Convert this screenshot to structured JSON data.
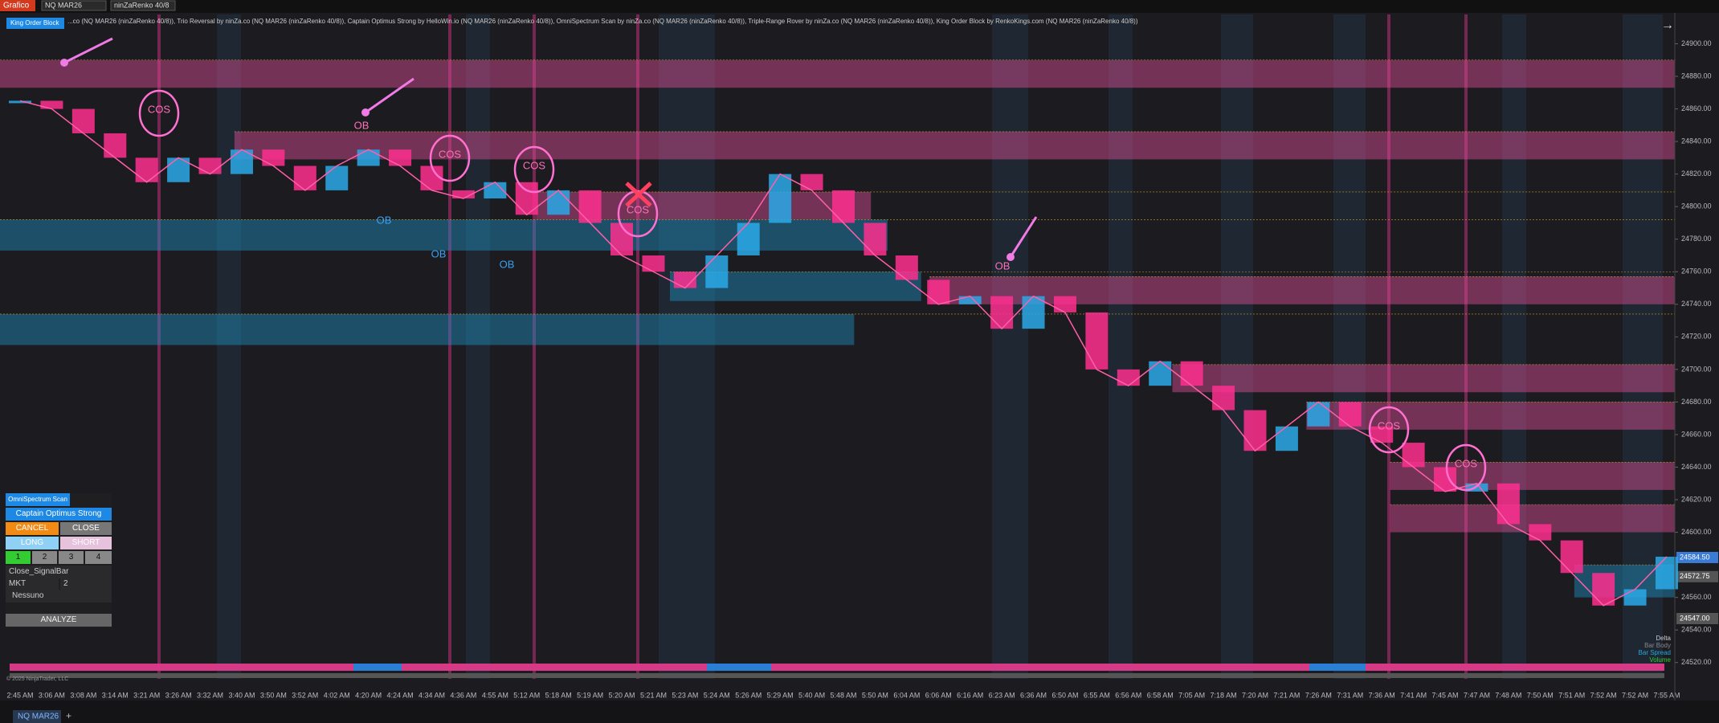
{
  "toolbar": {
    "app": "Grafico",
    "instrument": "NQ MAR26",
    "bar_type": "ninZaRenko 40/8"
  },
  "chart": {
    "indicators_line": "...co (NQ MAR26 (ninZaRenko 40/8)), Trio Reversal by ninZa.co (NQ MAR26 (ninZaRenko 40/8)), Captain Optimus Strong by HelloWin.io (NQ MAR26 (ninZaRenko 40/8)), OmniSpectrum Scan by ninZa.co (NQ MAR26 (ninZaRenko 40/8)), Triple-Range Rover by ninZa.co (NQ MAR26 (ninZaRenko 40/8)), King Order Block by RenkoKings.com (NQ MAR26 (ninZaRenko 40/8))",
    "button": "King Order Block",
    "ylim": [
      24510,
      24918
    ],
    "yticks": [
      {
        "value": 24900,
        "label": "24900.00"
      },
      {
        "value": 24880,
        "label": "24880.00"
      },
      {
        "value": 24860,
        "label": "24860.00"
      },
      {
        "value": 24840,
        "label": "24840.00"
      },
      {
        "value": 24820,
        "label": "24820.00"
      },
      {
        "value": 24800,
        "label": "24800.00"
      },
      {
        "value": 24780,
        "label": "24780.00"
      },
      {
        "value": 24760,
        "label": "24760.00"
      },
      {
        "value": 24740,
        "label": "24740.00"
      },
      {
        "value": 24720,
        "label": "24720.00"
      },
      {
        "value": 24700,
        "label": "24700.00"
      },
      {
        "value": 24680,
        "label": "24680.00"
      },
      {
        "value": 24660,
        "label": "24660.00"
      },
      {
        "value": 24640,
        "label": "24640.00"
      },
      {
        "value": 24620,
        "label": "24620.00"
      },
      {
        "value": 24600,
        "label": "24600.00"
      },
      {
        "value": 24560,
        "label": "24560.00"
      },
      {
        "value": 24540,
        "label": "24540.00"
      },
      {
        "value": 24520,
        "label": "24520.00"
      }
    ],
    "price_labels": [
      {
        "value": 24584.5,
        "label": "24584.50",
        "color": "#3a7bd5"
      },
      {
        "value": 24572.75,
        "label": "24572.75",
        "color": "#555"
      },
      {
        "value": 24547,
        "label": "24547.00",
        "color": "#555"
      }
    ],
    "x_labels": [
      "2:45 AM",
      "3:06 AM",
      "3:08 AM",
      "3:14 AM",
      "3:21 AM",
      "3:26 AM",
      "3:32 AM",
      "3:40 AM",
      "3:50 AM",
      "3:52 AM",
      "4:02 AM",
      "4:20 AM",
      "4:24 AM",
      "4:34 AM",
      "4:36 AM",
      "4:55 AM",
      "5:12 AM",
      "5:18 AM",
      "5:19 AM",
      "5:20 AM",
      "5:21 AM",
      "5:23 AM",
      "5:24 AM",
      "5:26 AM",
      "5:29 AM",
      "5:40 AM",
      "5:48 AM",
      "5:50 AM",
      "6:04 AM",
      "6:06 AM",
      "6:16 AM",
      "6:23 AM",
      "6:36 AM",
      "6:50 AM",
      "6:55 AM",
      "6:56 AM",
      "6:58 AM",
      "7:05 AM",
      "7:18 AM",
      "7:20 AM",
      "7:21 AM",
      "7:26 AM",
      "7:31 AM",
      "7:36 AM",
      "7:41 AM",
      "7:45 AM",
      "7:47 AM",
      "7:48 AM",
      "7:50 AM",
      "7:51 AM",
      "7:52 AM",
      "7:52 AM",
      "7:55 AM"
    ],
    "price": [
      24865,
      24860,
      24845,
      24830,
      24815,
      24830,
      24820,
      24835,
      24825,
      24810,
      24825,
      24835,
      24825,
      24810,
      24805,
      24815,
      24795,
      24810,
      24790,
      24770,
      24760,
      24750,
      24770,
      24790,
      24820,
      24810,
      24790,
      24770,
      24755,
      24740,
      24745,
      24725,
      24745,
      24735,
      24700,
      24690,
      24705,
      24690,
      24675,
      24650,
      24665,
      24680,
      24665,
      24655,
      24640,
      24625,
      24630,
      24605,
      24595,
      24575,
      24555,
      24565,
      24585
    ],
    "up_color": "#2aa9e8",
    "down_color": "#ff2f8f",
    "zones": [
      {
        "low": 24873,
        "high": 24890,
        "color": "#e0509a"
      },
      {
        "low": 24829,
        "high": 24846,
        "color": "#e0509a"
      },
      {
        "low": 24792,
        "high": 24809,
        "color": "#e0509a"
      },
      {
        "low": 24740,
        "high": 24757,
        "color": "#e0509a"
      },
      {
        "low": 24686,
        "high": 24703,
        "color": "#e0509a"
      },
      {
        "low": 24663,
        "high": 24680,
        "color": "#e0509a"
      },
      {
        "low": 24626,
        "high": 24643,
        "color": "#e0509a"
      },
      {
        "low": 24600,
        "high": 24617,
        "color": "#e0509a"
      },
      {
        "low": 24773,
        "high": 24792,
        "color": "#1e90c0"
      },
      {
        "low": 24715,
        "high": 24734,
        "color": "#1e90c0"
      },
      {
        "low": 24742,
        "high": 24760,
        "color": "#1e90c0"
      },
      {
        "low": 24560,
        "high": 24580,
        "color": "#1e90c0"
      }
    ],
    "annotations": [
      "COS",
      "COS",
      "COS",
      "COS",
      "COS",
      "COS",
      "OB",
      "OB",
      "OB",
      "OB",
      "OB"
    ],
    "legend": [
      "Delta",
      "Bar Body",
      "Bar Spread",
      "Volume"
    ],
    "copyright": "© 2025 NinjaTrader, LLC"
  },
  "panel": {
    "title": "OmniSpectrum Scan",
    "strategy": "Captain Optimus Strong",
    "cancel": "CANCEL",
    "close": "CLOSE",
    "long": "LONG",
    "short": "SHORT",
    "quantities": [
      "1",
      "2",
      "3",
      "4"
    ],
    "exit_mode": "Close_SignalBar",
    "order_type": "MKT",
    "order_qty": "2",
    "account": "Nessuno",
    "analyze": "ANALYZE"
  },
  "footer": {
    "tab": "NQ MAR26",
    "add": "+"
  }
}
